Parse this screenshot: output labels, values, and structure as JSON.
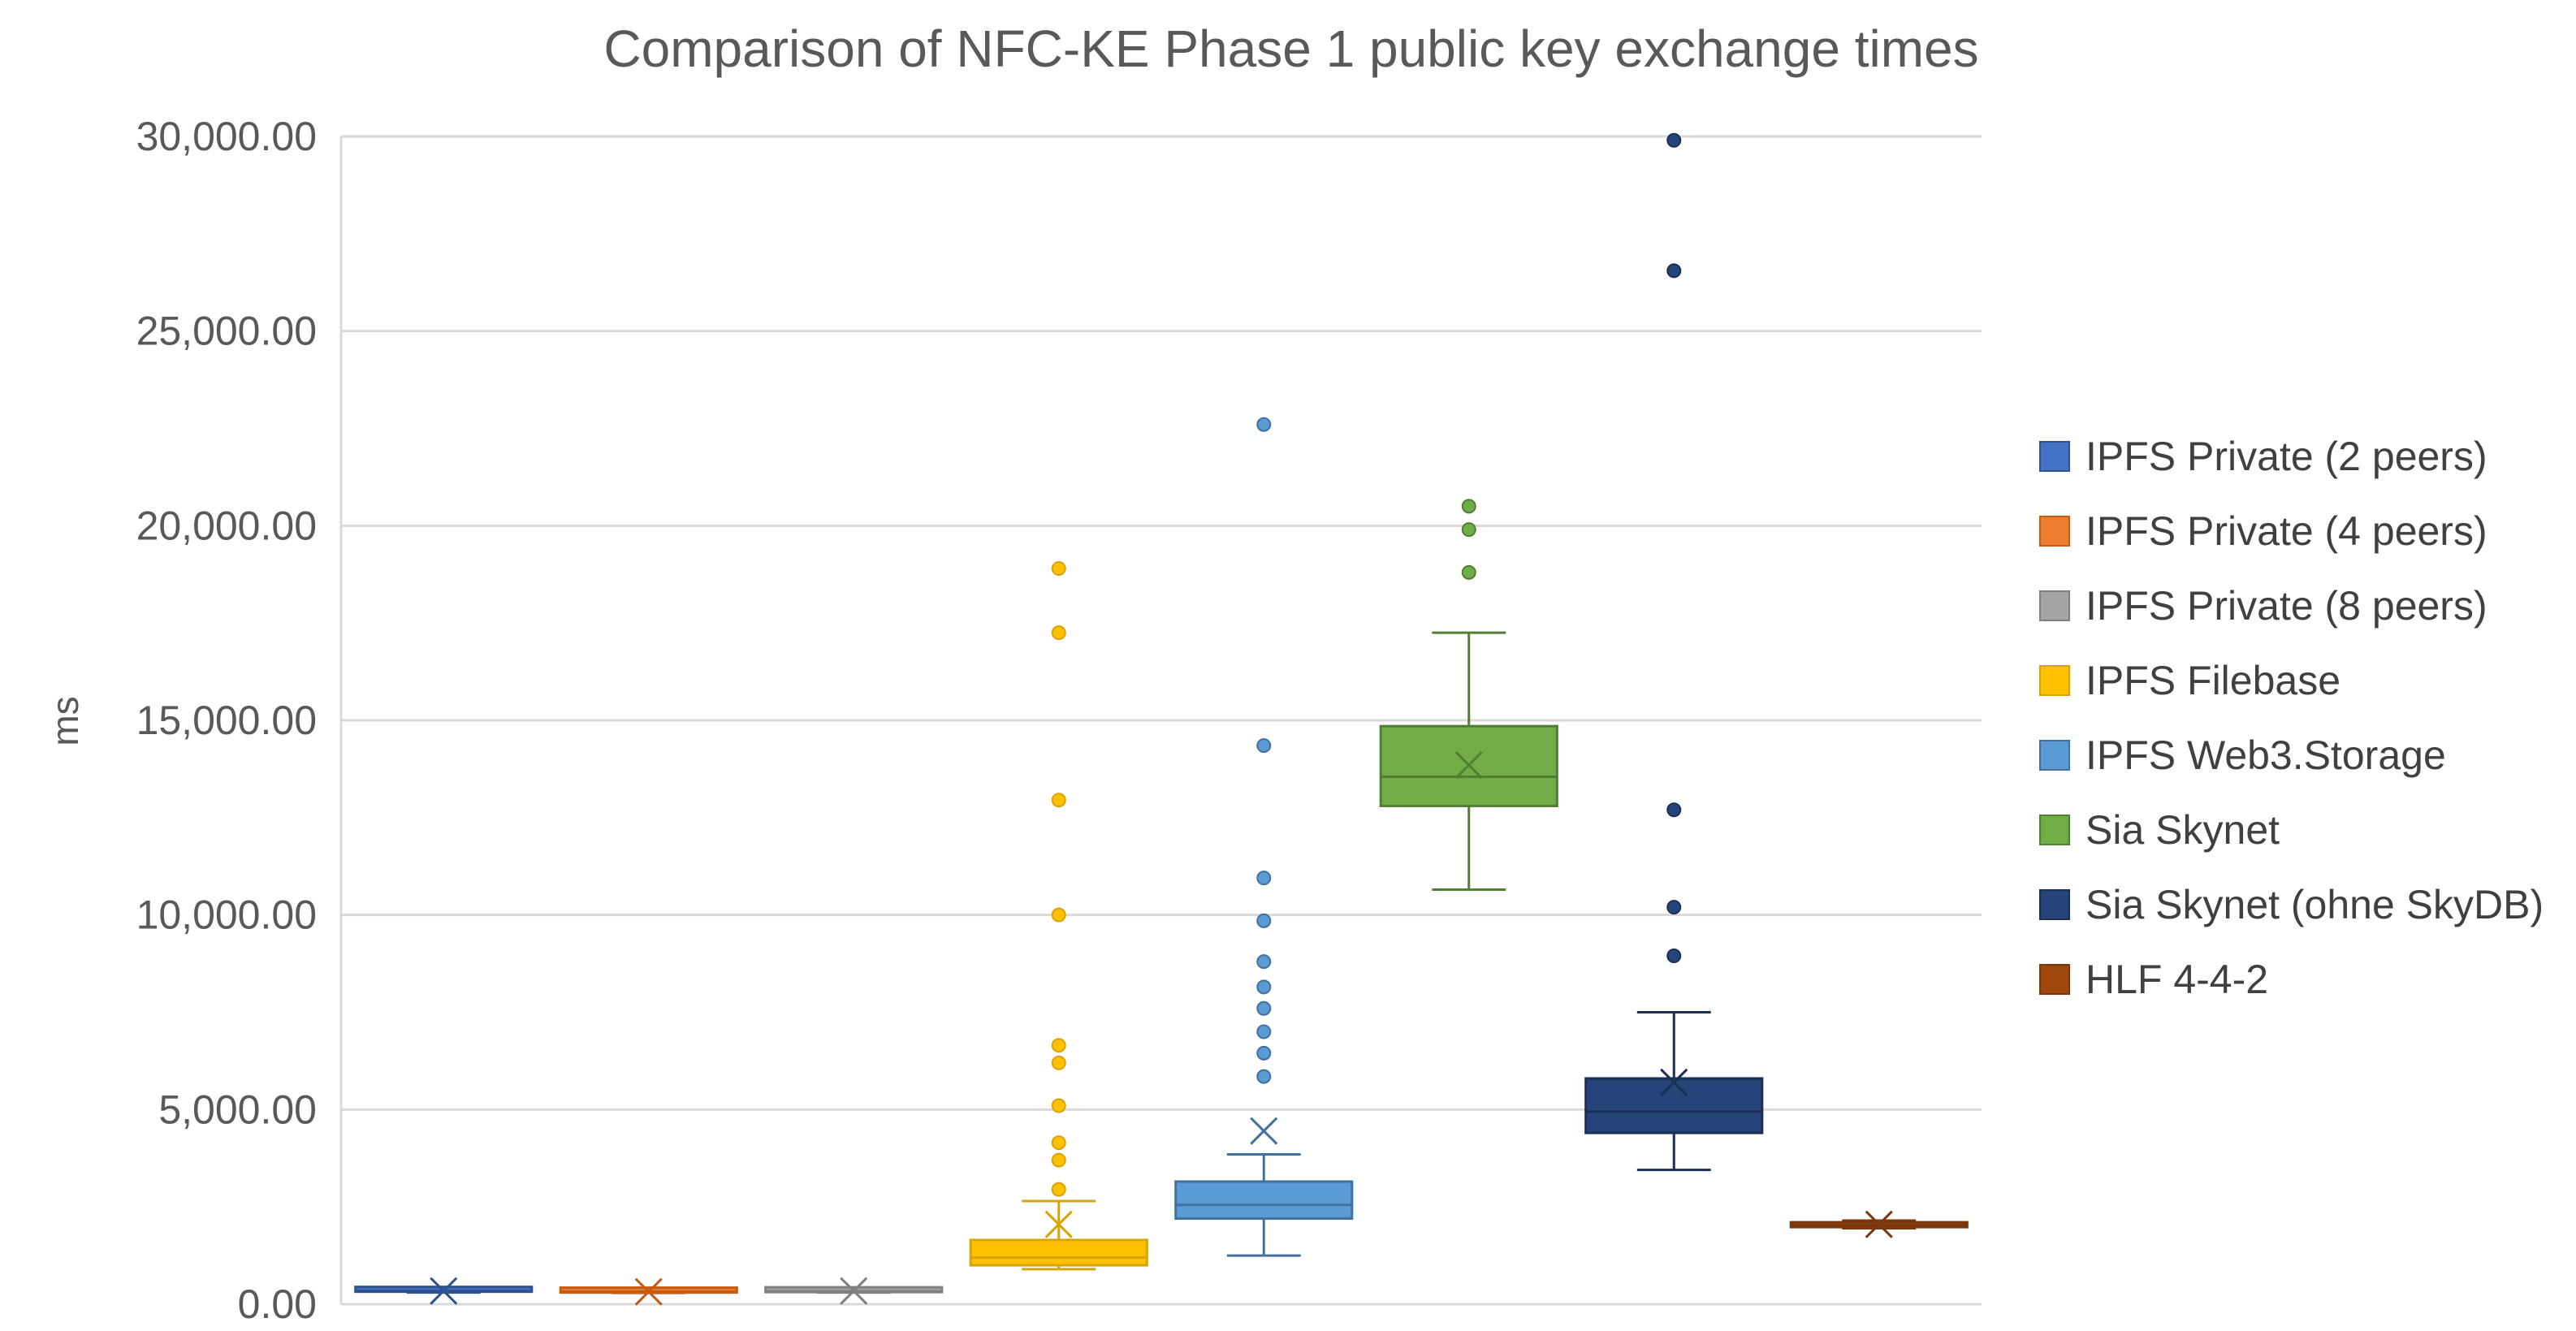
{
  "chart_data": {
    "type": "box",
    "title": "Comparison of NFC-KE Phase 1 public key exchange times",
    "xlabel": "",
    "ylabel": "ms",
    "ylim": [
      0,
      30000
    ],
    "yticks": [
      0,
      5000,
      10000,
      15000,
      20000,
      25000,
      30000
    ],
    "ytick_labels": [
      "0.00",
      "5,000.00",
      "10,000.00",
      "15,000.00",
      "20,000.00",
      "25,000.00",
      "30,000.00"
    ],
    "grid": true,
    "legend_position": "right",
    "series": [
      {
        "name": "IPFS Private (2 peers)",
        "color": "#4472C4",
        "stroke": "#2F528F",
        "q1": 320,
        "median": 340,
        "q3": 360,
        "whisker_low": 300,
        "whisker_high": 380,
        "mean": 340,
        "outliers": []
      },
      {
        "name": "IPFS Private (4 peers)",
        "color": "#ED7D31",
        "stroke": "#C55A11",
        "q1": 300,
        "median": 320,
        "q3": 340,
        "whisker_low": 290,
        "whisker_high": 360,
        "mean": 320,
        "outliers": []
      },
      {
        "name": "IPFS Private (8 peers)",
        "color": "#A5A5A5",
        "stroke": "#7F7F7F",
        "q1": 310,
        "median": 330,
        "q3": 350,
        "whisker_low": 300,
        "whisker_high": 370,
        "mean": 340,
        "outliers": []
      },
      {
        "name": "IPFS Filebase",
        "color": "#FFC000",
        "stroke": "#D9A400",
        "q1": 1000,
        "median": 1200,
        "q3": 1650,
        "whisker_low": 900,
        "whisker_high": 2650,
        "mean": 2050,
        "outliers": [
          2950,
          3700,
          4150,
          5100,
          6200,
          6650,
          10000,
          12950,
          17250,
          18900
        ]
      },
      {
        "name": "IPFS Web3.Storage",
        "color": "#5B9BD5",
        "stroke": "#41719C",
        "q1": 2200,
        "median": 2550,
        "q3": 3150,
        "whisker_low": 1250,
        "whisker_high": 3850,
        "mean": 4450,
        "outliers": [
          5850,
          6450,
          7000,
          7600,
          8150,
          8800,
          9850,
          10950,
          14350,
          22600
        ]
      },
      {
        "name": "Sia Skynet",
        "color": "#70AD47",
        "stroke": "#507E32",
        "q1": 12800,
        "median": 13550,
        "q3": 14850,
        "whisker_low": 10650,
        "whisker_high": 17250,
        "mean": 13850,
        "outliers": [
          18800,
          19900,
          20500
        ]
      },
      {
        "name": "Sia Skynet (ohne SkyDB)",
        "color": "#264478",
        "stroke": "#1A2F54",
        "q1": 4400,
        "median": 4950,
        "q3": 5800,
        "whisker_low": 3450,
        "whisker_high": 7500,
        "mean": 5700,
        "outliers": [
          8950,
          10200,
          12700,
          26550,
          29900
        ]
      },
      {
        "name": "HLF 4-4-2",
        "color": "#9E480E",
        "stroke": "#7A370B",
        "q1": 1980,
        "median": 2030,
        "q3": 2080,
        "whisker_low": 1950,
        "whisker_high": 2150,
        "mean": 2050,
        "outliers": []
      }
    ]
  }
}
